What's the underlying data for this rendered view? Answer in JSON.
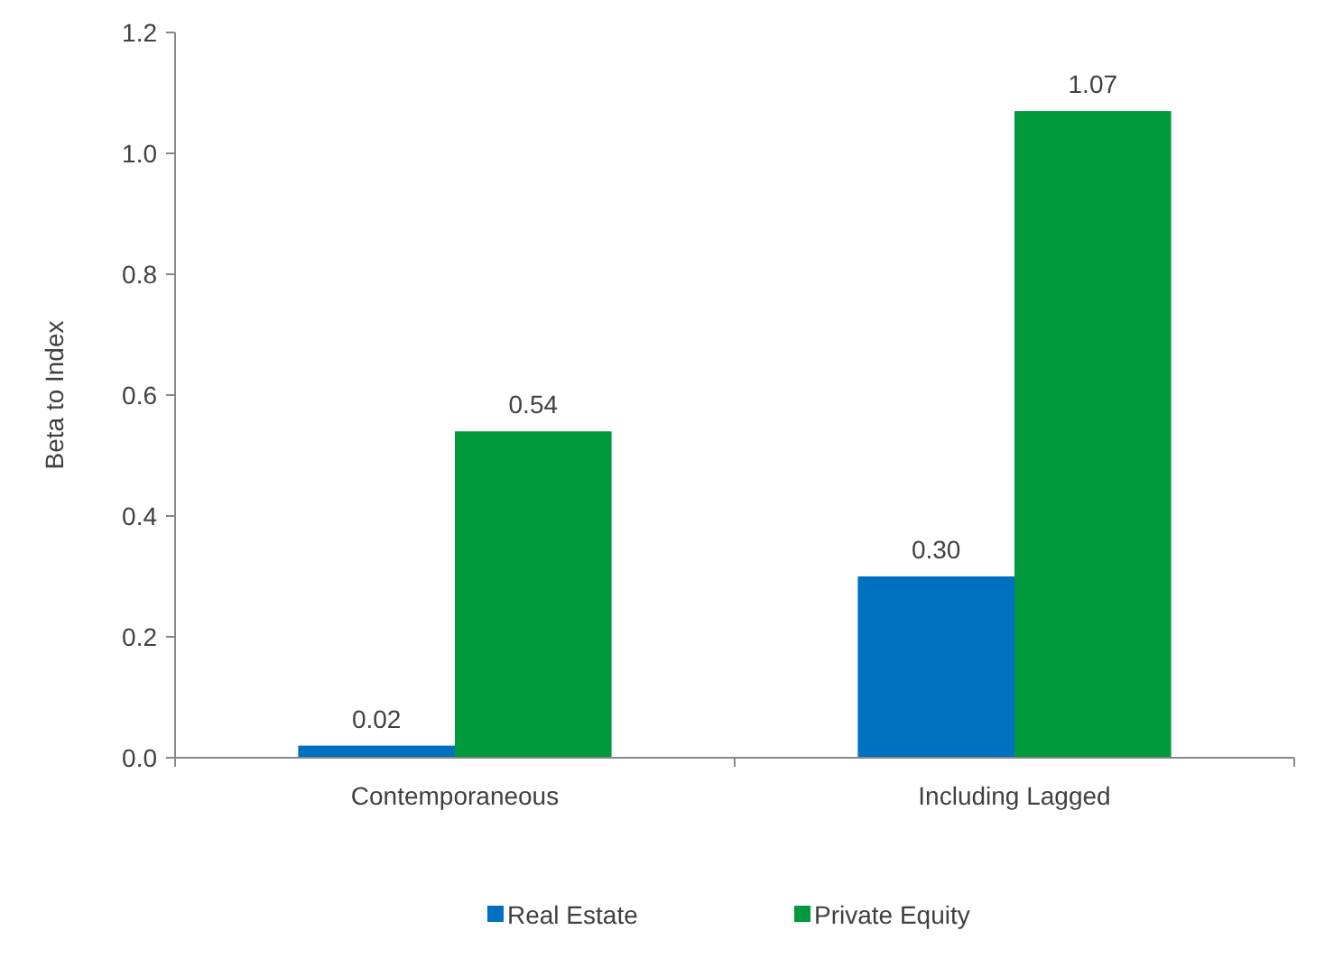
{
  "chart_data": {
    "type": "bar",
    "ylabel": "Beta to Index",
    "categories": [
      "Contemporaneous",
      "Including Lagged"
    ],
    "series": [
      {
        "name": "Real Estate",
        "color": "#0070c0",
        "values": [
          0.02,
          0.3
        ],
        "value_labels": [
          "0.02",
          "0.30"
        ]
      },
      {
        "name": "Private Equity",
        "color": "#009a3d",
        "values": [
          0.54,
          1.07
        ],
        "value_labels": [
          "0.54",
          "1.07"
        ]
      }
    ],
    "ylim": [
      0,
      1.2
    ],
    "yticks": [
      {
        "value": 0,
        "label": "0.0"
      },
      {
        "value": 0.2,
        "label": "0.2"
      },
      {
        "value": 0.4,
        "label": "0.4"
      },
      {
        "value": 0.6,
        "label": "0.6"
      },
      {
        "value": 0.8,
        "label": "0.8"
      },
      {
        "value": 1,
        "label": "1.0"
      },
      {
        "value": 1.2,
        "label": "1.2"
      }
    ],
    "grid": false,
    "legend": "bottom"
  }
}
